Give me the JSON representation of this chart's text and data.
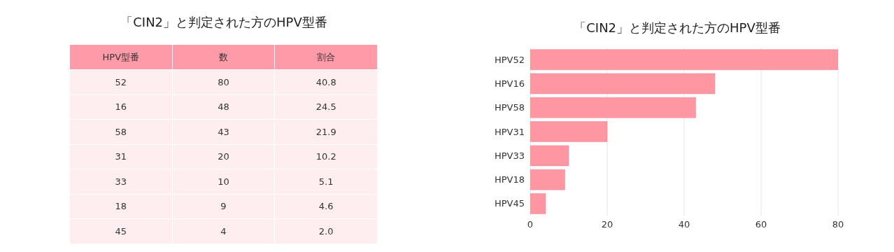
{
  "chart_data": [
    {
      "type": "other",
      "title": "「CIN2」と判定された方のHPV型番",
      "xlabel": "HPV型番",
      "categories": [
        "52",
        "16",
        "58",
        "31",
        "33",
        "18",
        "45"
      ],
      "data_labels": true,
      "series": [
        {
          "name": "数",
          "values": [
            80,
            48,
            43,
            20,
            10,
            9,
            4
          ]
        },
        {
          "name": "割合",
          "values": [
            40.8,
            24.5,
            21.9,
            10.2,
            5.1,
            4.6,
            2.0
          ],
          "value_labels": [
            "40.8",
            "24.5",
            "21.9",
            "10.2",
            "5.1",
            "4.6",
            "2.0"
          ]
        }
      ]
    },
    {
      "type": "bar",
      "orientation": "horizontal",
      "title": "「CIN2」と判定された方のHPV型番",
      "categories": [
        "HPV52",
        "HPV16",
        "HPV58",
        "HPV31",
        "HPV33",
        "HPV18",
        "HPV45"
      ],
      "values": [
        80,
        48,
        43,
        20,
        10,
        9,
        4
      ],
      "color": "#ff97a3",
      "xlim": [
        0,
        80
      ],
      "xticks": [
        0,
        20,
        40,
        60,
        80
      ],
      "grid": "x",
      "legend": false
    }
  ]
}
